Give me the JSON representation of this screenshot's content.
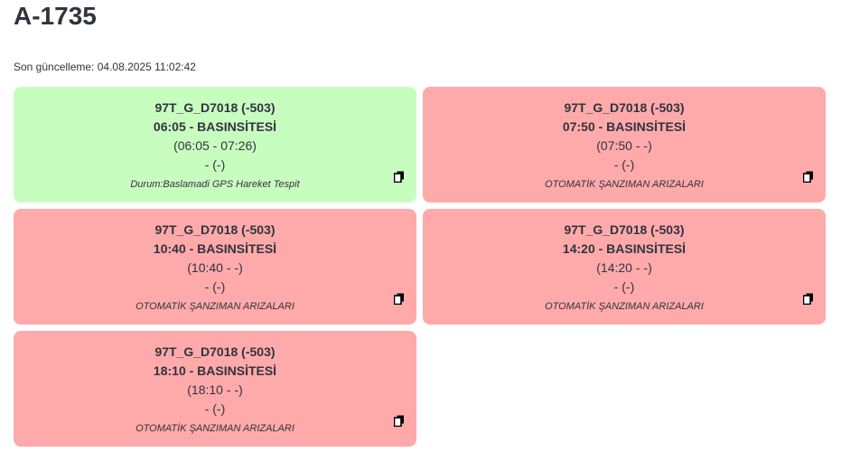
{
  "header": {
    "title": "A-1735",
    "last_update": "Son güncelleme: 04.08.2025 11:02:42"
  },
  "cards": [
    {
      "color": "#c8fdc0",
      "lines": [
        "97T_G_D7018 (-503)",
        "06:05 - BASINSİTESİ",
        "(06:05 - 07:26)",
        "- (-)"
      ],
      "note": "Durum:Baslamadi GPS Hareket Tespit"
    },
    {
      "color": "#ffaaaa",
      "lines": [
        "97T_G_D7018 (-503)",
        "07:50 - BASINSİTESİ",
        "(07:50 - -)",
        "- (-)"
      ],
      "note": "OTOMATİK ŞANZIMAN ARIZALARI"
    },
    {
      "color": "#ffaaaa",
      "lines": [
        "97T_G_D7018 (-503)",
        "10:40 - BASINSİTESİ",
        "(10:40 - -)",
        "- (-)"
      ],
      "note": "OTOMATİK ŞANZIMAN ARIZALARI"
    },
    {
      "color": "#ffaaaa",
      "lines": [
        "97T_G_D7018 (-503)",
        "14:20 - BASINSİTESİ",
        "(14:20 - -)",
        "- (-)"
      ],
      "note": "OTOMATİK ŞANZIMAN ARIZALARI"
    },
    {
      "color": "#ffaaaa",
      "lines": [
        "97T_G_D7018 (-503)",
        "18:10 - BASINSİTESİ",
        "(18:10 - -)",
        "- (-)"
      ],
      "note": "OTOMATİK ŞANZIMAN ARIZALARI"
    }
  ]
}
